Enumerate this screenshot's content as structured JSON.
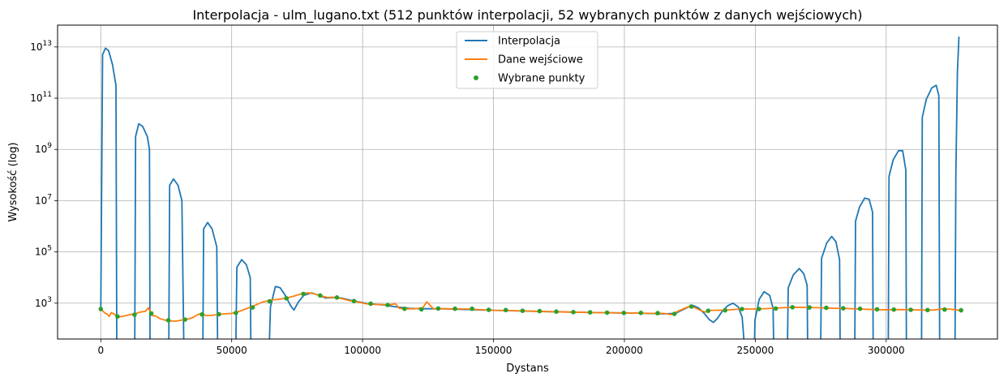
{
  "chart_data": {
    "type": "line",
    "title": "Interpolacja - ulm_lugano.txt (512 punktów interpolacji, 52 wybranych punktów z danych wejściowych)",
    "xlabel": "Dystans",
    "ylabel": "Wysokość (log)",
    "y_scale": "log",
    "xlim": [
      -16500,
      342500
    ],
    "ylim_log10": [
      1.6,
      13.85
    ],
    "grid": true,
    "legend_position": "top-center",
    "x_ticks": [
      {
        "value": 0,
        "label": "0"
      },
      {
        "value": 50000,
        "label": "50000"
      },
      {
        "value": 100000,
        "label": "100000"
      },
      {
        "value": 150000,
        "label": "150000"
      },
      {
        "value": 200000,
        "label": "200000"
      },
      {
        "value": 250000,
        "label": "250000"
      },
      {
        "value": 300000,
        "label": "300000"
      }
    ],
    "y_ticks": [
      {
        "exp": 3,
        "base": "10",
        "sup": "3"
      },
      {
        "exp": 5,
        "base": "10",
        "sup": "5"
      },
      {
        "exp": 7,
        "base": "10",
        "sup": "7"
      },
      {
        "exp": 9,
        "base": "10",
        "sup": "9"
      },
      {
        "exp": 11,
        "base": "10",
        "sup": "11"
      },
      {
        "exp": 13,
        "base": "10",
        "sup": "13"
      }
    ],
    "series": [
      {
        "name": "Interpolacja",
        "color": "#1f77b4",
        "style": "line",
        "segments": [
          [
            [
              0,
              2.78
            ],
            [
              700,
              12.7
            ],
            [
              1800,
              12.95
            ],
            [
              3000,
              12.85
            ],
            [
              4500,
              12.3
            ],
            [
              5800,
              11.5
            ],
            [
              6100,
              1.5
            ]
          ],
          [
            [
              13000,
              1.5
            ],
            [
              13300,
              9.5
            ],
            [
              14500,
              10.0
            ],
            [
              16000,
              9.9
            ],
            [
              17800,
              9.5
            ],
            [
              18600,
              9.0
            ],
            [
              18800,
              1.5
            ]
          ],
          [
            [
              26000,
              1.5
            ],
            [
              26300,
              7.6
            ],
            [
              27800,
              7.85
            ],
            [
              29500,
              7.6
            ],
            [
              31000,
              7.0
            ],
            [
              31700,
              1.5
            ]
          ],
          [
            [
              39000,
              1.5
            ],
            [
              39300,
              5.9
            ],
            [
              40800,
              6.15
            ],
            [
              42500,
              5.9
            ],
            [
              44300,
              5.2
            ],
            [
              44600,
              1.5
            ]
          ],
          [
            [
              51600,
              1.5
            ],
            [
              52000,
              4.4
            ],
            [
              53800,
              4.7
            ],
            [
              55600,
              4.5
            ],
            [
              57100,
              4.0
            ],
            [
              57300,
              1.5
            ]
          ],
          [
            [
              64400,
              1.5
            ],
            [
              64800,
              2.85
            ],
            [
              66700,
              3.65
            ],
            [
              68500,
              3.6
            ],
            [
              70500,
              3.3
            ],
            [
              72500,
              2.9
            ],
            [
              73800,
              2.73
            ],
            [
              75500,
              3.05
            ],
            [
              77500,
              3.3
            ],
            [
              80500,
              3.4
            ],
            [
              83500,
              3.3
            ],
            [
              86000,
              3.2
            ],
            [
              89000,
              3.22
            ],
            [
              92000,
              3.2
            ],
            [
              96000,
              3.1
            ],
            [
              102000,
              2.98
            ],
            [
              108000,
              2.93
            ],
            [
              113000,
              2.85
            ],
            [
              118000,
              2.8
            ],
            [
              122000,
              2.78
            ],
            [
              130000,
              2.78
            ],
            [
              150000,
              2.72
            ],
            [
              170000,
              2.67
            ],
            [
              190000,
              2.63
            ],
            [
              205000,
              2.61
            ],
            [
              215000,
              2.58
            ],
            [
              219500,
              2.6
            ],
            [
              222000,
              2.73
            ],
            [
              224500,
              2.85
            ],
            [
              226500,
              2.9
            ],
            [
              228500,
              2.8
            ],
            [
              230500,
              2.6
            ],
            [
              232500,
              2.35
            ],
            [
              234000,
              2.25
            ],
            [
              235500,
              2.4
            ],
            [
              237500,
              2.7
            ],
            [
              239500,
              2.9
            ],
            [
              241500,
              3.0
            ],
            [
              243500,
              2.85
            ],
            [
              245000,
              2.45
            ],
            [
              245700,
              1.5
            ]
          ],
          [
            [
              249700,
              1.5
            ],
            [
              249900,
              2.35
            ],
            [
              251500,
              3.15
            ],
            [
              253400,
              3.45
            ],
            [
              255500,
              3.3
            ],
            [
              256800,
              2.8
            ],
            [
              257000,
              1.5
            ]
          ],
          [
            [
              262300,
              1.5
            ],
            [
              262600,
              3.6
            ],
            [
              264500,
              4.1
            ],
            [
              266800,
              4.35
            ],
            [
              268500,
              4.15
            ],
            [
              269800,
              3.7
            ],
            [
              270000,
              1.5
            ]
          ],
          [
            [
              275000,
              1.5
            ],
            [
              275300,
              4.75
            ],
            [
              277300,
              5.35
            ],
            [
              279200,
              5.6
            ],
            [
              280800,
              5.4
            ],
            [
              282200,
              4.7
            ],
            [
              282400,
              1.5
            ]
          ],
          [
            [
              288000,
              1.5
            ],
            [
              288300,
              6.2
            ],
            [
              289800,
              6.75
            ],
            [
              291800,
              7.1
            ],
            [
              293500,
              7.05
            ],
            [
              294800,
              6.55
            ],
            [
              295000,
              1.5
            ]
          ],
          [
            [
              300800,
              1.5
            ],
            [
              301100,
              7.95
            ],
            [
              302700,
              8.6
            ],
            [
              304700,
              8.95
            ],
            [
              306300,
              8.95
            ],
            [
              307500,
              8.2
            ],
            [
              307700,
              1.5
            ]
          ],
          [
            [
              313500,
              1.5
            ],
            [
              313800,
              10.25
            ],
            [
              315300,
              10.95
            ],
            [
              317400,
              11.4
            ],
            [
              319100,
              11.5
            ],
            [
              320100,
              11.1
            ],
            [
              320400,
              1.5
            ]
          ],
          [
            [
              326300,
              1.5
            ],
            [
              326600,
              8.0
            ],
            [
              327200,
              12.0
            ],
            [
              327800,
              13.4
            ]
          ]
        ]
      },
      {
        "name": "Dane wejściowe",
        "color": "#ff7f0e",
        "style": "line",
        "points": [
          [
            0,
            2.77
          ],
          [
            1500,
            2.62
          ],
          [
            2500,
            2.57
          ],
          [
            3200,
            2.48
          ],
          [
            4000,
            2.63
          ],
          [
            5000,
            2.58
          ],
          [
            6000,
            2.5
          ],
          [
            7000,
            2.46
          ],
          [
            9000,
            2.5
          ],
          [
            11000,
            2.55
          ],
          [
            13000,
            2.58
          ],
          [
            15000,
            2.65
          ],
          [
            17000,
            2.68
          ],
          [
            18200,
            2.82
          ],
          [
            19500,
            2.52
          ],
          [
            21000,
            2.5
          ],
          [
            22500,
            2.4
          ],
          [
            24000,
            2.35
          ],
          [
            26000,
            2.3
          ],
          [
            29000,
            2.3
          ],
          [
            31500,
            2.35
          ],
          [
            33000,
            2.37
          ],
          [
            35000,
            2.43
          ],
          [
            37000,
            2.55
          ],
          [
            38500,
            2.6
          ],
          [
            40000,
            2.52
          ],
          [
            42000,
            2.52
          ],
          [
            44500,
            2.55
          ],
          [
            47000,
            2.58
          ],
          [
            50000,
            2.6
          ],
          [
            53000,
            2.68
          ],
          [
            56000,
            2.8
          ],
          [
            59000,
            2.92
          ],
          [
            62000,
            3.05
          ],
          [
            65000,
            3.12
          ],
          [
            68000,
            3.15
          ],
          [
            71000,
            3.2
          ],
          [
            74000,
            3.28
          ],
          [
            77000,
            3.38
          ],
          [
            79000,
            3.4
          ],
          [
            81000,
            3.38
          ],
          [
            83500,
            3.3
          ],
          [
            86500,
            3.22
          ],
          [
            89000,
            3.23
          ],
          [
            92000,
            3.18
          ],
          [
            95000,
            3.1
          ],
          [
            98000,
            3.05
          ],
          [
            101000,
            2.98
          ],
          [
            104000,
            2.95
          ],
          [
            107000,
            2.95
          ],
          [
            110000,
            2.92
          ],
          [
            112500,
            2.98
          ],
          [
            114000,
            2.8
          ],
          [
            116000,
            2.78
          ],
          [
            120000,
            2.78
          ],
          [
            123000,
            2.82
          ],
          [
            124500,
            3.05
          ],
          [
            125500,
            2.95
          ],
          [
            127000,
            2.78
          ],
          [
            132000,
            2.78
          ],
          [
            140000,
            2.77
          ],
          [
            150000,
            2.72
          ],
          [
            160000,
            2.7
          ],
          [
            170000,
            2.67
          ],
          [
            180000,
            2.65
          ],
          [
            190000,
            2.63
          ],
          [
            200000,
            2.62
          ],
          [
            210000,
            2.6
          ],
          [
            215000,
            2.6
          ],
          [
            218000,
            2.55
          ],
          [
            220000,
            2.66
          ],
          [
            223000,
            2.8
          ],
          [
            225000,
            2.88
          ],
          [
            227000,
            2.82
          ],
          [
            229000,
            2.72
          ],
          [
            231000,
            2.65
          ],
          [
            233000,
            2.72
          ],
          [
            236000,
            2.72
          ],
          [
            240000,
            2.74
          ],
          [
            245000,
            2.77
          ],
          [
            250000,
            2.77
          ],
          [
            255000,
            2.79
          ],
          [
            260000,
            2.82
          ],
          [
            265000,
            2.84
          ],
          [
            270000,
            2.83
          ],
          [
            275000,
            2.82
          ],
          [
            280000,
            2.8
          ],
          [
            285000,
            2.79
          ],
          [
            290000,
            2.77
          ],
          [
            295000,
            2.75
          ],
          [
            300000,
            2.74
          ],
          [
            305000,
            2.75
          ],
          [
            310000,
            2.74
          ],
          [
            315000,
            2.73
          ],
          [
            318000,
            2.73
          ],
          [
            321000,
            2.77
          ],
          [
            324000,
            2.77
          ],
          [
            328000,
            2.72
          ]
        ]
      },
      {
        "name": "Wybrane punkty",
        "color": "#2ca02c",
        "style": "markers",
        "points": [
          [
            0,
            2.77
          ],
          [
            6400,
            2.48
          ],
          [
            12900,
            2.55
          ],
          [
            19300,
            2.6
          ],
          [
            25800,
            2.33
          ],
          [
            32200,
            2.36
          ],
          [
            38700,
            2.56
          ],
          [
            45100,
            2.57
          ],
          [
            51600,
            2.62
          ],
          [
            58000,
            2.83
          ],
          [
            64500,
            3.07
          ],
          [
            70900,
            3.19
          ],
          [
            77400,
            3.36
          ],
          [
            83800,
            3.3
          ],
          [
            90200,
            3.22
          ],
          [
            96700,
            3.08
          ],
          [
            103100,
            2.98
          ],
          [
            109600,
            2.93
          ],
          [
            116000,
            2.78
          ],
          [
            122500,
            2.76
          ],
          [
            128900,
            2.79
          ],
          [
            135300,
            2.78
          ],
          [
            141800,
            2.78
          ],
          [
            148200,
            2.74
          ],
          [
            154700,
            2.73
          ],
          [
            161100,
            2.7
          ],
          [
            167600,
            2.69
          ],
          [
            174000,
            2.67
          ],
          [
            180500,
            2.65
          ],
          [
            186900,
            2.64
          ],
          [
            193400,
            2.63
          ],
          [
            199800,
            2.62
          ],
          [
            206300,
            2.62
          ],
          [
            212700,
            2.61
          ],
          [
            219100,
            2.58
          ],
          [
            225600,
            2.87
          ],
          [
            232000,
            2.7
          ],
          [
            238500,
            2.72
          ],
          [
            244900,
            2.77
          ],
          [
            251400,
            2.77
          ],
          [
            257800,
            2.79
          ],
          [
            264200,
            2.84
          ],
          [
            270700,
            2.83
          ],
          [
            277100,
            2.82
          ],
          [
            283600,
            2.8
          ],
          [
            290000,
            2.78
          ],
          [
            296500,
            2.76
          ],
          [
            302900,
            2.75
          ],
          [
            309400,
            2.74
          ],
          [
            315800,
            2.73
          ],
          [
            322300,
            2.75
          ],
          [
            328600,
            2.72
          ]
        ]
      }
    ]
  }
}
